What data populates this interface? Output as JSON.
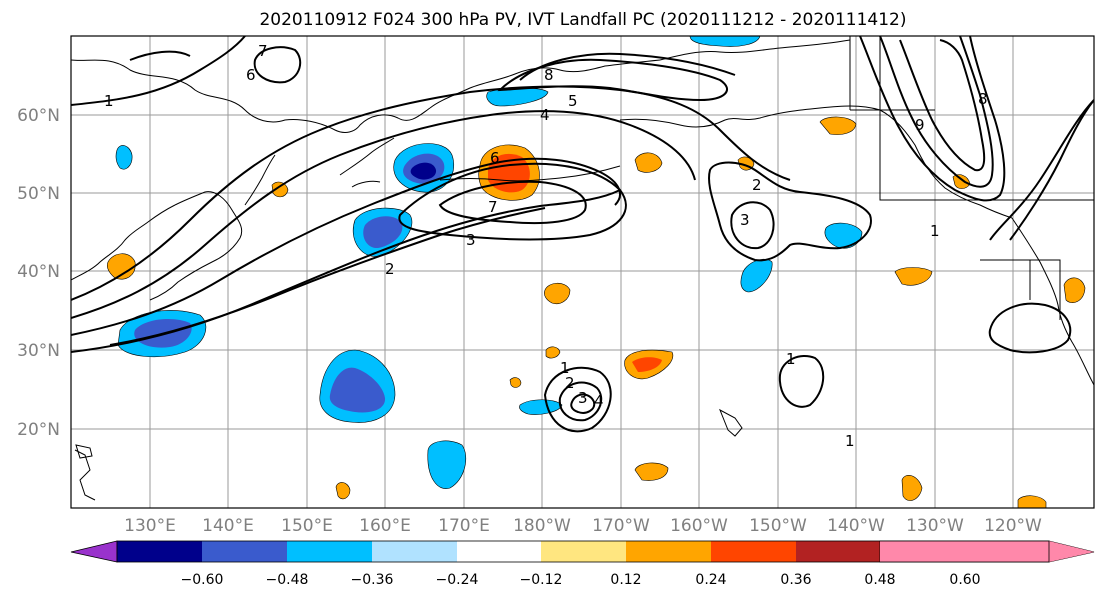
{
  "figure": {
    "title": "2020110912 F024 300 hPa PV, IVT Landfall PC (2020111212 - 2020111412)"
  },
  "map": {
    "lat_labels": [
      "60°N",
      "50°N",
      "40°N",
      "30°N",
      "20°N"
    ],
    "lon_labels": [
      "130°E",
      "140°E",
      "150°E",
      "160°E",
      "170°E",
      "180°W",
      "170°W",
      "160°W",
      "150°W",
      "140°W",
      "130°W",
      "120°W"
    ],
    "contour_labels": [
      "1",
      "2",
      "3",
      "4",
      "5",
      "6",
      "7",
      "8",
      "9",
      "1",
      "2",
      "3",
      "6",
      "7",
      "8",
      "1",
      "2",
      "3",
      "4",
      "1",
      "1"
    ]
  },
  "colorbar": {
    "colors": [
      "#9932cc",
      "#00008b",
      "#3a5bcd",
      "#00bfff",
      "#b0e2ff",
      "#ffffff",
      "#ffe680",
      "#ffa500",
      "#ff4500",
      "#b22222",
      "#ff88aa"
    ],
    "tick_labels": [
      "−0.60",
      "−0.48",
      "−0.36",
      "−0.24",
      "−0.12",
      "0.12",
      "0.24",
      "0.36",
      "0.48",
      "0.60"
    ]
  }
}
